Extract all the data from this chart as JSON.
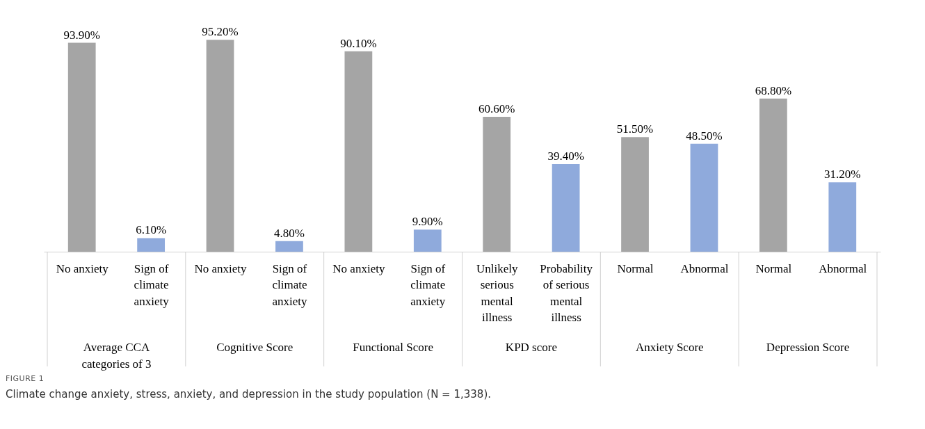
{
  "chart_data": {
    "type": "bar",
    "categories": [
      "No anxiety",
      "Sign of climate anxiety",
      "No anxiety",
      "Sign of climate anxiety",
      "No anxiety",
      "Sign of climate anxiety",
      "Unlikely serious mental illness",
      "Probability of serious mental illness",
      "Normal",
      "Abnormal",
      "Normal",
      "Abnormal"
    ],
    "values": [
      93.9,
      6.1,
      95.2,
      4.8,
      90.1,
      9.9,
      60.6,
      39.4,
      51.5,
      48.5,
      68.8,
      31.2
    ],
    "value_labels": [
      "93.90%",
      "6.10%",
      "95.20%",
      "4.80%",
      "90.10%",
      "9.90%",
      "60.60%",
      "39.40%",
      "51.50%",
      "48.50%",
      "68.80%",
      "31.20%"
    ],
    "colors": [
      "#a5a5a5",
      "#8faadc",
      "#a5a5a5",
      "#8faadc",
      "#a5a5a5",
      "#8faadc",
      "#a5a5a5",
      "#8faadc",
      "#a5a5a5",
      "#8faadc",
      "#a5a5a5",
      "#8faadc"
    ],
    "annotations": [
      "Average CCA categories of 3",
      "Cognitive Score",
      "Functional Score",
      "KPD score",
      "Anxiety Score",
      "Depression Score",
      "FIGURE 1",
      "Climate change anxiety, stress, anxiety, and depression in the study population (N = 1,338)."
    ],
    "data_labels": false
  }
}
